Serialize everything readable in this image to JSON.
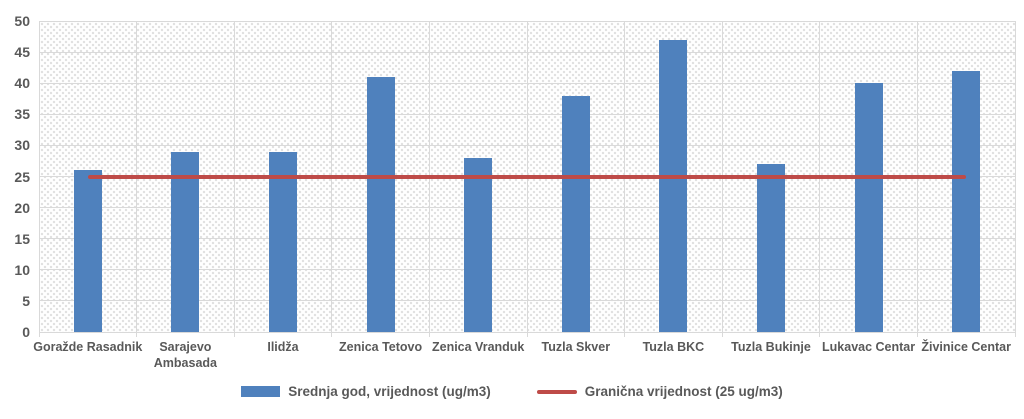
{
  "chart_data": {
    "type": "bar",
    "title": "",
    "xlabel": "",
    "ylabel": "",
    "categories": [
      "Goražde Rasadnik",
      "Sarajevo\nAmbasada",
      "Ilidža",
      "Zenica Tetovo",
      "Zenica Vranduk",
      "Tuzla Skver",
      "Tuzla BKC",
      "Tuzla Bukinje",
      "Lukavac Centar",
      "Živinice Centar"
    ],
    "series": [
      {
        "name": "Srednja god, vrijednost (ug/m3)",
        "type": "bar",
        "color": "#4F81BD",
        "values": [
          26,
          29,
          29,
          41,
          28,
          38,
          47,
          27,
          40,
          42
        ]
      },
      {
        "name": "Granična vrijednost (25 ug/m3)",
        "type": "line",
        "color": "#BE4B48",
        "value": 25
      }
    ],
    "ylim": [
      0,
      50
    ],
    "ytick_step": 5,
    "yticks": [
      0,
      5,
      10,
      15,
      20,
      25,
      30,
      35,
      40,
      45,
      50
    ],
    "grid": true,
    "legend_position": "bottom",
    "plot_background": "dotted-diagonal-hatch"
  },
  "colors": {
    "bar": "#4F81BD",
    "limit_line": "#BE4B48",
    "gridline": "#D9D9D9",
    "axis_text": "#595959",
    "background": "#FFFFFF"
  }
}
